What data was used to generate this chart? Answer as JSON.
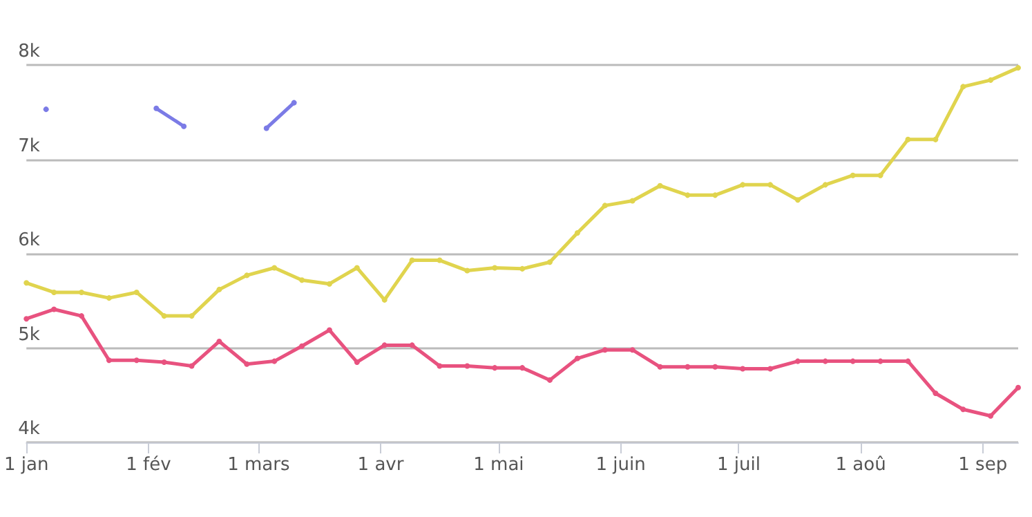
{
  "chart_data": {
    "type": "line",
    "x": [
      "--01-01",
      "--01-08",
      "--01-15",
      "--01-22",
      "--01-29",
      "--02-05",
      "--02-12",
      "--02-19",
      "--02-26",
      "--03-05",
      "--03-12",
      "--03-19",
      "--03-26",
      "--04-02",
      "--04-09",
      "--04-16",
      "--04-23",
      "--04-30",
      "--05-07",
      "--05-14",
      "--05-21",
      "--05-28",
      "--06-04",
      "--06-11",
      "--06-18",
      "--06-25",
      "--07-02",
      "--07-09",
      "--07-16",
      "--07-23",
      "--07-30",
      "--08-06",
      "--08-13",
      "--08-20",
      "--08-27",
      "--09-03",
      "--09-10"
    ],
    "series": [
      {
        "color": "#e0d44e",
        "values": [
          5690,
          5590,
          5590,
          5530,
          5590,
          5340,
          5340,
          5620,
          5770,
          5850,
          5720,
          5680,
          5850,
          5510,
          5930,
          5930,
          5820,
          5850,
          5840,
          5910,
          6220,
          6510,
          6560,
          6720,
          6620,
          6620,
          6730,
          6730,
          6570,
          6730,
          6830,
          6830,
          7210,
          7210,
          7770,
          7840,
          7970
        ]
      },
      {
        "color": "#e8527f",
        "values": [
          5310,
          5410,
          5340,
          4870,
          4870,
          4850,
          4810,
          5070,
          4830,
          4860,
          5020,
          5190,
          4850,
          5030,
          5030,
          4810,
          4810,
          4790,
          4790,
          4660,
          4890,
          4980,
          4980,
          4800,
          4800,
          4800,
          4780,
          4780,
          4860,
          4860,
          4860,
          4860,
          4860,
          4520,
          4350,
          4280,
          4580
        ]
      },
      {
        "color": "#7b7be6",
        "x": [
          "--01-06",
          "--01-13",
          "--01-20",
          "--01-27",
          "--02-03",
          "--02-10",
          "--02-17",
          "--02-24",
          "--03-03",
          "--03-10"
        ],
        "values": [
          7530,
          null,
          null,
          null,
          7540,
          7350,
          null,
          null,
          7330,
          7600
        ]
      }
    ],
    "xlim": [
      "--01-01",
      "--09-10"
    ],
    "xticks": [
      {
        "value": "--01-01",
        "label": "1 jan"
      },
      {
        "value": "--02-01",
        "label": "1 fév"
      },
      {
        "value": "--03-01",
        "label": "1 mars"
      },
      {
        "value": "--04-01",
        "label": "1 avr"
      },
      {
        "value": "--05-01",
        "label": "1 mai"
      },
      {
        "value": "--06-01",
        "label": "1 juin"
      },
      {
        "value": "--07-01",
        "label": "1 juil"
      },
      {
        "value": "--08-01",
        "label": "1 aoû"
      },
      {
        "value": "--09-01",
        "label": "1 sep"
      }
    ],
    "ylim": [
      4000,
      8000
    ],
    "yticks": [
      {
        "value": 4000,
        "label": "4k"
      },
      {
        "value": 5000,
        "label": "5k"
      },
      {
        "value": 6000,
        "label": "6k"
      },
      {
        "value": 7000,
        "label": "7k"
      },
      {
        "value": 8000,
        "label": "8k"
      }
    ],
    "grid": "y",
    "marker": "circle",
    "line_style": "solid"
  }
}
